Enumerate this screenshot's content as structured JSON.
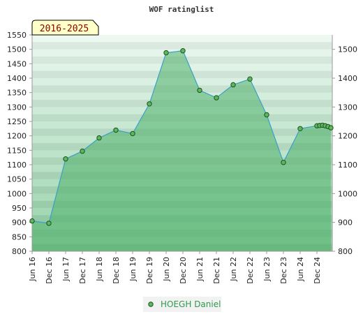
{
  "chart_data": {
    "type": "area",
    "title": "WOF ratinglist",
    "badge": "2016-2025",
    "xlabel": "",
    "ylabel": "",
    "ylim": [
      800,
      1550
    ],
    "y_ticks": [
      800,
      850,
      900,
      950,
      1000,
      1050,
      1100,
      1150,
      1200,
      1250,
      1300,
      1350,
      1400,
      1450,
      1500,
      1550
    ],
    "y_ticks_right": [
      800,
      900,
      1000,
      1100,
      1200,
      1300,
      1400,
      1500
    ],
    "x_tick_labels": [
      "Jun 16",
      "Dec 16",
      "Jun 17",
      "Dec 17",
      "Jun 18",
      "Dec 18",
      "Jun 19",
      "Dec 19",
      "Jun 20",
      "Dec 20",
      "Jun 21",
      "Dec 21",
      "Jun 22",
      "Dec 22",
      "Jun 23",
      "Dec 23",
      "Jun 24",
      "Dec 24"
    ],
    "grid": true,
    "legend_position": "bottom",
    "series": [
      {
        "name": "HOEGH Daniel",
        "color": "#3aa0c8",
        "marker_color": "#5cb85c",
        "x": [
          "2016-06",
          "2016-12",
          "2017-06",
          "2017-12",
          "2018-06",
          "2018-12",
          "2019-06",
          "2019-12",
          "2020-06",
          "2020-12",
          "2021-06",
          "2021-12",
          "2022-06",
          "2022-12",
          "2023-06",
          "2023-12",
          "2024-06",
          "2024-12",
          "2025-01",
          "2025-02",
          "2025-03",
          "2025-04",
          "2025-05"
        ],
        "values": [
          905,
          897,
          1120,
          1147,
          1193,
          1220,
          1208,
          1311,
          1488,
          1495,
          1358,
          1332,
          1377,
          1397,
          1273,
          1108,
          1225,
          1235,
          1236,
          1237,
          1235,
          1232,
          1228
        ]
      }
    ]
  }
}
